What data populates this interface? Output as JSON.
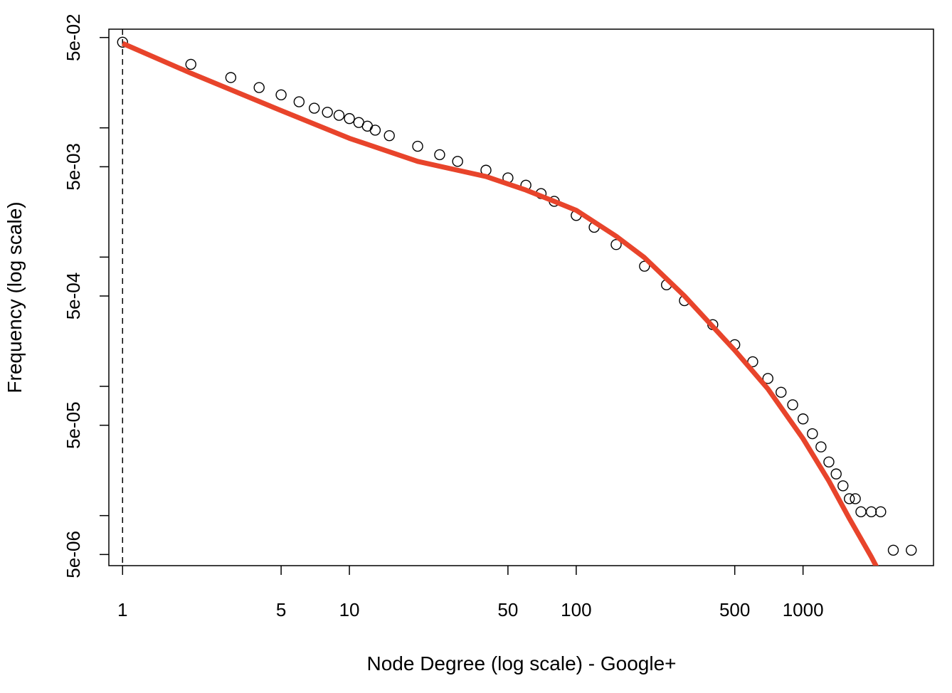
{
  "chart_data": {
    "type": "scatter",
    "title": "",
    "xlabel": "Node Degree (log scale) - Google+",
    "ylabel": "Frequency (log scale)",
    "x_scale": "log",
    "y_scale": "log",
    "xlim": [
      0.87,
      3760
    ],
    "ylim": [
      4.1e-06,
      0.058
    ],
    "x_ticks": [
      1,
      5,
      10,
      50,
      100,
      500,
      1000
    ],
    "x_tick_labels": [
      "1",
      "5",
      "10",
      "50",
      "100",
      "500",
      "1000"
    ],
    "y_ticks": [
      5e-06,
      1e-05,
      5e-05,
      0.0001,
      0.0005,
      0.001,
      0.005,
      0.01,
      0.05
    ],
    "y_tick_labels": [
      "5e-06",
      "",
      "5e-05",
      "",
      "5e-04",
      "",
      "5e-03",
      "",
      "5e-02"
    ],
    "reference_line": {
      "x": 1,
      "style": "dashed",
      "color": "#000000"
    },
    "fit_color": "#e8442b",
    "point_color": "#000000",
    "grid": false,
    "series": [
      {
        "kind": "points",
        "x": [
          1,
          2,
          3,
          4,
          5,
          6,
          7,
          8,
          9,
          10,
          11,
          12,
          13,
          15,
          20,
          25,
          30,
          40,
          50,
          60,
          70,
          80,
          100,
          120,
          150,
          200,
          250,
          300,
          400,
          500,
          600,
          700,
          800,
          900,
          1000,
          1100,
          1200,
          1300,
          1400,
          1500,
          1600,
          1700,
          1800,
          2000,
          2200,
          2500,
          3000
        ],
        "y": [
          0.046,
          0.031,
          0.0245,
          0.0205,
          0.018,
          0.0159,
          0.0142,
          0.0132,
          0.0125,
          0.0118,
          0.011,
          0.0103,
          0.0096,
          0.0087,
          0.0072,
          0.0062,
          0.0055,
          0.0047,
          0.0041,
          0.0036,
          0.0031,
          0.0027,
          0.0021,
          0.0017,
          0.00125,
          0.00085,
          0.00061,
          0.00046,
          0.0003,
          0.00021,
          0.000155,
          0.000115,
          9e-05,
          7.2e-05,
          5.6e-05,
          4.3e-05,
          3.4e-05,
          2.6e-05,
          2.1e-05,
          1.7e-05,
          1.35e-05,
          1.35e-05,
          1.07e-05,
          1.07e-05,
          1.07e-05,
          5.4e-06,
          5.4e-06
        ]
      },
      {
        "kind": "fit",
        "x": [
          1,
          2,
          5,
          10,
          20,
          40,
          60,
          80,
          100,
          150,
          200,
          300,
          400,
          500,
          700,
          1000,
          1300,
          1600,
          2000,
          2300
        ],
        "y": [
          0.045,
          0.0265,
          0.0136,
          0.0083,
          0.0055,
          0.0042,
          0.0033,
          0.0027,
          0.0023,
          0.00145,
          0.00099,
          0.0005,
          0.00029,
          0.00019,
          9.55e-05,
          3.94e-05,
          1.85e-05,
          9.5e-06,
          4.8e-06,
          3e-06
        ]
      }
    ]
  }
}
